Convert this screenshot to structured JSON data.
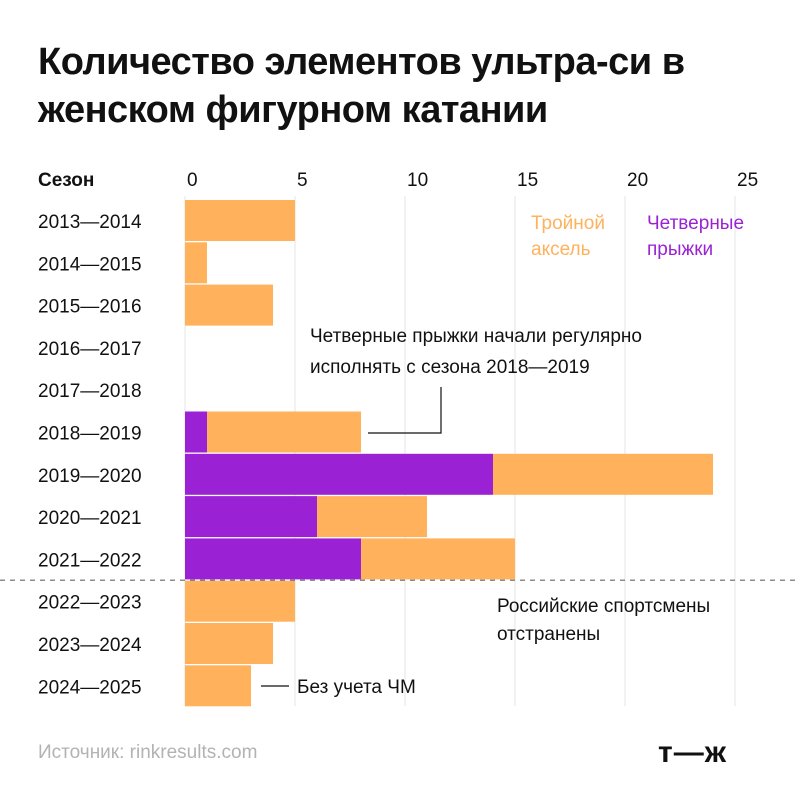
{
  "title": "Количество элементов ультра-си в женском фигурном катании",
  "source": "Источник: rinkresults.com",
  "logo": "т—ж",
  "colors": {
    "quad": "#9b22d4",
    "axel": "#ffb15c",
    "grid": "#e6e6e6",
    "divider": "#666666"
  },
  "chart_data": {
    "type": "bar",
    "orientation": "horizontal",
    "stacked": true,
    "category_header": "Сезон",
    "xlim": [
      0,
      25
    ],
    "xticks": [
      0,
      5,
      10,
      15,
      20,
      25
    ],
    "categories": [
      "2013—2014",
      "2014—2015",
      "2015—2016",
      "2016—2017",
      "2017—2018",
      "2018—2019",
      "2019—2020",
      "2020—2021",
      "2021—2022",
      "2022—2023",
      "2023—2024",
      "2024—2025"
    ],
    "series": [
      {
        "name": "Четверные прыжки",
        "color": "#9b22d4",
        "values": [
          0,
          0,
          0,
          0,
          0,
          1,
          14,
          6,
          8,
          0,
          0,
          0
        ]
      },
      {
        "name": "Тройной аксель",
        "color": "#ffb15c",
        "values": [
          5,
          1,
          4,
          0,
          0,
          7,
          10,
          5,
          7,
          5,
          4,
          3
        ]
      }
    ],
    "legend": {
      "placement": "top-right",
      "axel_lines": [
        "Тройной",
        "аксель"
      ],
      "quad_lines": [
        "Четверные",
        "прыжки"
      ]
    },
    "annotations": {
      "quads_start": [
        "Четверные прыжки начали регулярно",
        "исполнять с сезона 2018—2019"
      ],
      "suspended": [
        "Российские спортсмены",
        "отстранены"
      ],
      "no_worlds": "Без учета ЧМ"
    },
    "divider_after_category": "2021—2022"
  }
}
